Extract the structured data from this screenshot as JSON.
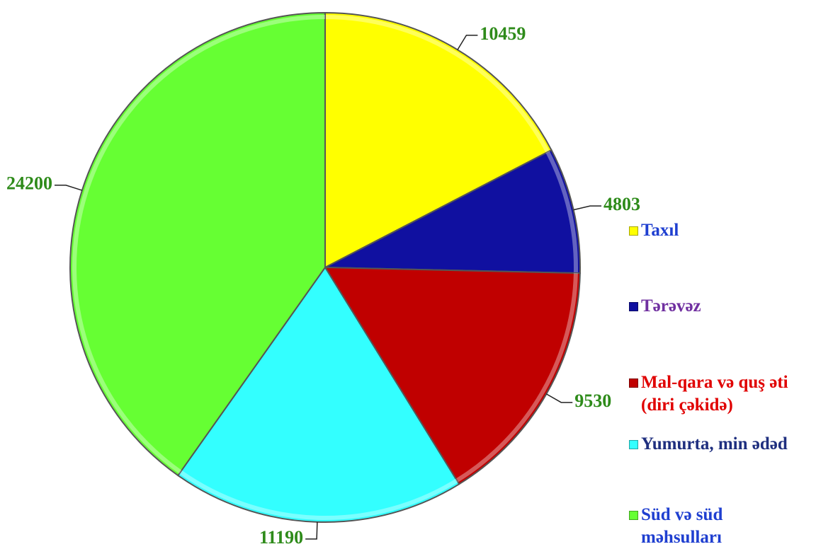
{
  "chart_data": {
    "type": "pie",
    "categories": [
      "Taxıl",
      "Tərəvəz",
      "Mal-qara və quş əti (diri çəkidə)",
      "Yumurta, min ədəd",
      "Süd və süd məhsulları"
    ],
    "values": [
      10459,
      4803,
      9530,
      11190,
      24200
    ],
    "colors": [
      "#ffff00",
      "#1010a0",
      "#c00000",
      "#33ffff",
      "#66ff33"
    ],
    "legend_text_colors": [
      "#1f3fd0",
      "#7030a0",
      "#e00000",
      "#1f2f7f",
      "#1f3fd0"
    ],
    "label_color": "#2e8b1a",
    "legend": "right"
  }
}
